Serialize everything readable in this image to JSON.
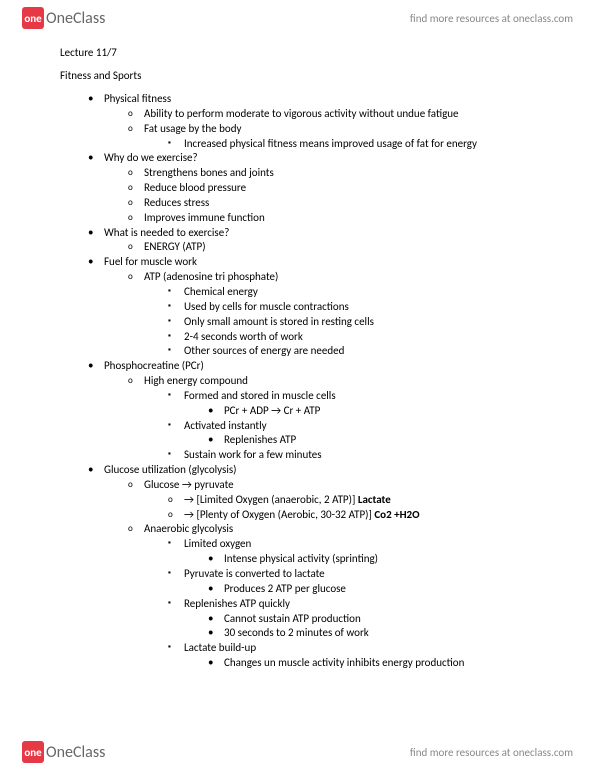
{
  "brand": {
    "badge": "one",
    "name": "OneClass"
  },
  "find_more": "find more resources at oneclass.com",
  "lecture_title": "Lecture 11/7",
  "topic": "Fitness and Sports",
  "colors": {
    "background": "#ffffff",
    "text": "#000000",
    "brand_badge": "#e63946",
    "brand_text": "#666666",
    "footer_text": "#888888"
  },
  "outline": [
    {
      "t": "Physical fitness",
      "c": [
        {
          "t": "Ability to perform moderate to vigorous activity without undue fatigue"
        },
        {
          "t": "Fat usage by the body",
          "c": [
            {
              "t": "Increased physical fitness means improved usage of fat for energy"
            }
          ]
        }
      ]
    },
    {
      "t": "Why do we exercise?",
      "c": [
        {
          "t": "Strengthens bones and joints"
        },
        {
          "t": "Reduce blood pressure"
        },
        {
          "t": "Reduces stress"
        },
        {
          "t": "Improves immune function"
        }
      ]
    },
    {
      "t": "What is needed to exercise?",
      "c": [
        {
          "t": "ENERGY (ATP)"
        }
      ]
    },
    {
      "t": "Fuel for muscle work",
      "c": [
        {
          "t": "ATP (adenosine tri phosphate)",
          "c": [
            {
              "t": "Chemical energy"
            },
            {
              "t": "Used by cells for muscle contractions"
            },
            {
              "t": "Only small amount is stored in resting cells"
            },
            {
              "t": "2-4 seconds worth of work"
            },
            {
              "t": "Other sources of energy are needed"
            }
          ]
        }
      ]
    },
    {
      "t": "Phosphocreatine (PCr)",
      "c": [
        {
          "t": "High energy compound",
          "c": [
            {
              "t": "Formed and stored in muscle cells",
              "c": [
                {
                  "t": "PCr + ADP → Cr + ATP"
                }
              ]
            },
            {
              "t": "Activated instantly",
              "c": [
                {
                  "t": "Replenishes ATP"
                }
              ]
            },
            {
              "t": "Sustain work for a few minutes"
            }
          ]
        }
      ]
    },
    {
      "t": "Glucose utilization (glycolysis)",
      "c": [
        {
          "t": "Glucose → pyruvate",
          "c4": [
            {
              "html": "→ [Limited Oxygen (anaerobic, 2 ATP)] <span class=\"bold\">Lactate</span>"
            },
            {
              "html": "→ [Plenty of Oxygen (Aerobic, 30-32 ATP)] <span class=\"bold\">Co2 +H2O</span>"
            }
          ]
        },
        {
          "t": "Anaerobic glycolysis",
          "c": [
            {
              "t": "Limited oxygen",
              "c": [
                {
                  "t": "Intense physical activity (sprinting)"
                }
              ]
            },
            {
              "t": "Pyruvate is converted to lactate",
              "c": [
                {
                  "t": "Produces 2 ATP per glucose"
                }
              ]
            },
            {
              "t": "Replenishes ATP quickly",
              "c": [
                {
                  "t": "Cannot sustain ATP production"
                },
                {
                  "t": "30 seconds to 2 minutes of work"
                }
              ]
            },
            {
              "t": "Lactate build-up",
              "c": [
                {
                  "t": "Changes un muscle activity inhibits energy production"
                }
              ]
            }
          ]
        }
      ]
    }
  ]
}
